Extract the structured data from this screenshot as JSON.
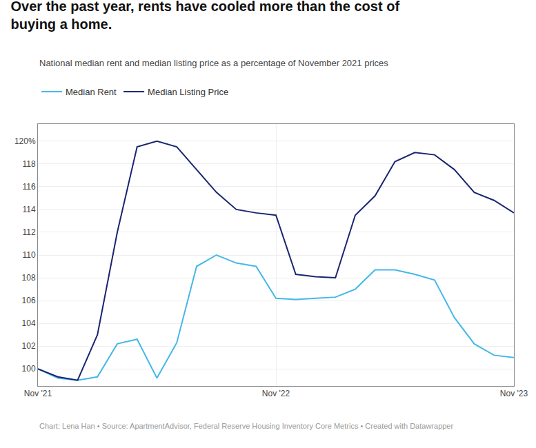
{
  "chart_data": {
    "type": "line",
    "title": "Over the past year, rents have cooled more than the cost of\nbuying a home.",
    "subtitle": "National median rent and median listing price as a percentage of November 2021 prices",
    "annotations": [
      "Chart: Lena Han • Source: ApartmentAdvisor, Federal Reserve Housing Inventory Core Metrics • Created with Datawrapper"
    ],
    "categories": [
      "Nov '21",
      null,
      null,
      null,
      null,
      null,
      null,
      null,
      null,
      null,
      null,
      null,
      "Nov '22",
      null,
      null,
      null,
      null,
      null,
      null,
      null,
      null,
      null,
      null,
      null,
      "Nov '23"
    ],
    "series": [
      {
        "name": "Median Rent",
        "color": "#44b8e8",
        "values": [
          100.0,
          99.2,
          99.0,
          99.3,
          102.2,
          102.6,
          99.2,
          102.3,
          109.0,
          110.0,
          109.3,
          109.0,
          106.2,
          106.1,
          106.2,
          106.3,
          107.0,
          108.7,
          108.7,
          108.3,
          107.8,
          104.5,
          102.2,
          101.2,
          101.0
        ]
      },
      {
        "name": "Median Listing Price",
        "color": "#1a2570",
        "values": [
          100.0,
          99.3,
          99.0,
          103.0,
          112.0,
          119.5,
          120.0,
          119.5,
          117.5,
          115.5,
          114.0,
          113.7,
          113.5,
          108.3,
          108.1,
          108.0,
          113.5,
          115.2,
          118.2,
          119.0,
          118.8,
          117.5,
          115.5,
          114.8,
          113.7
        ]
      }
    ],
    "ylim": [
      98.5,
      121.5
    ],
    "yticks": [
      100,
      102,
      104,
      106,
      108,
      110,
      112,
      114,
      116,
      118,
      {
        "value": 120,
        "label": "120%"
      }
    ],
    "grid": true,
    "legend": "upper left"
  }
}
